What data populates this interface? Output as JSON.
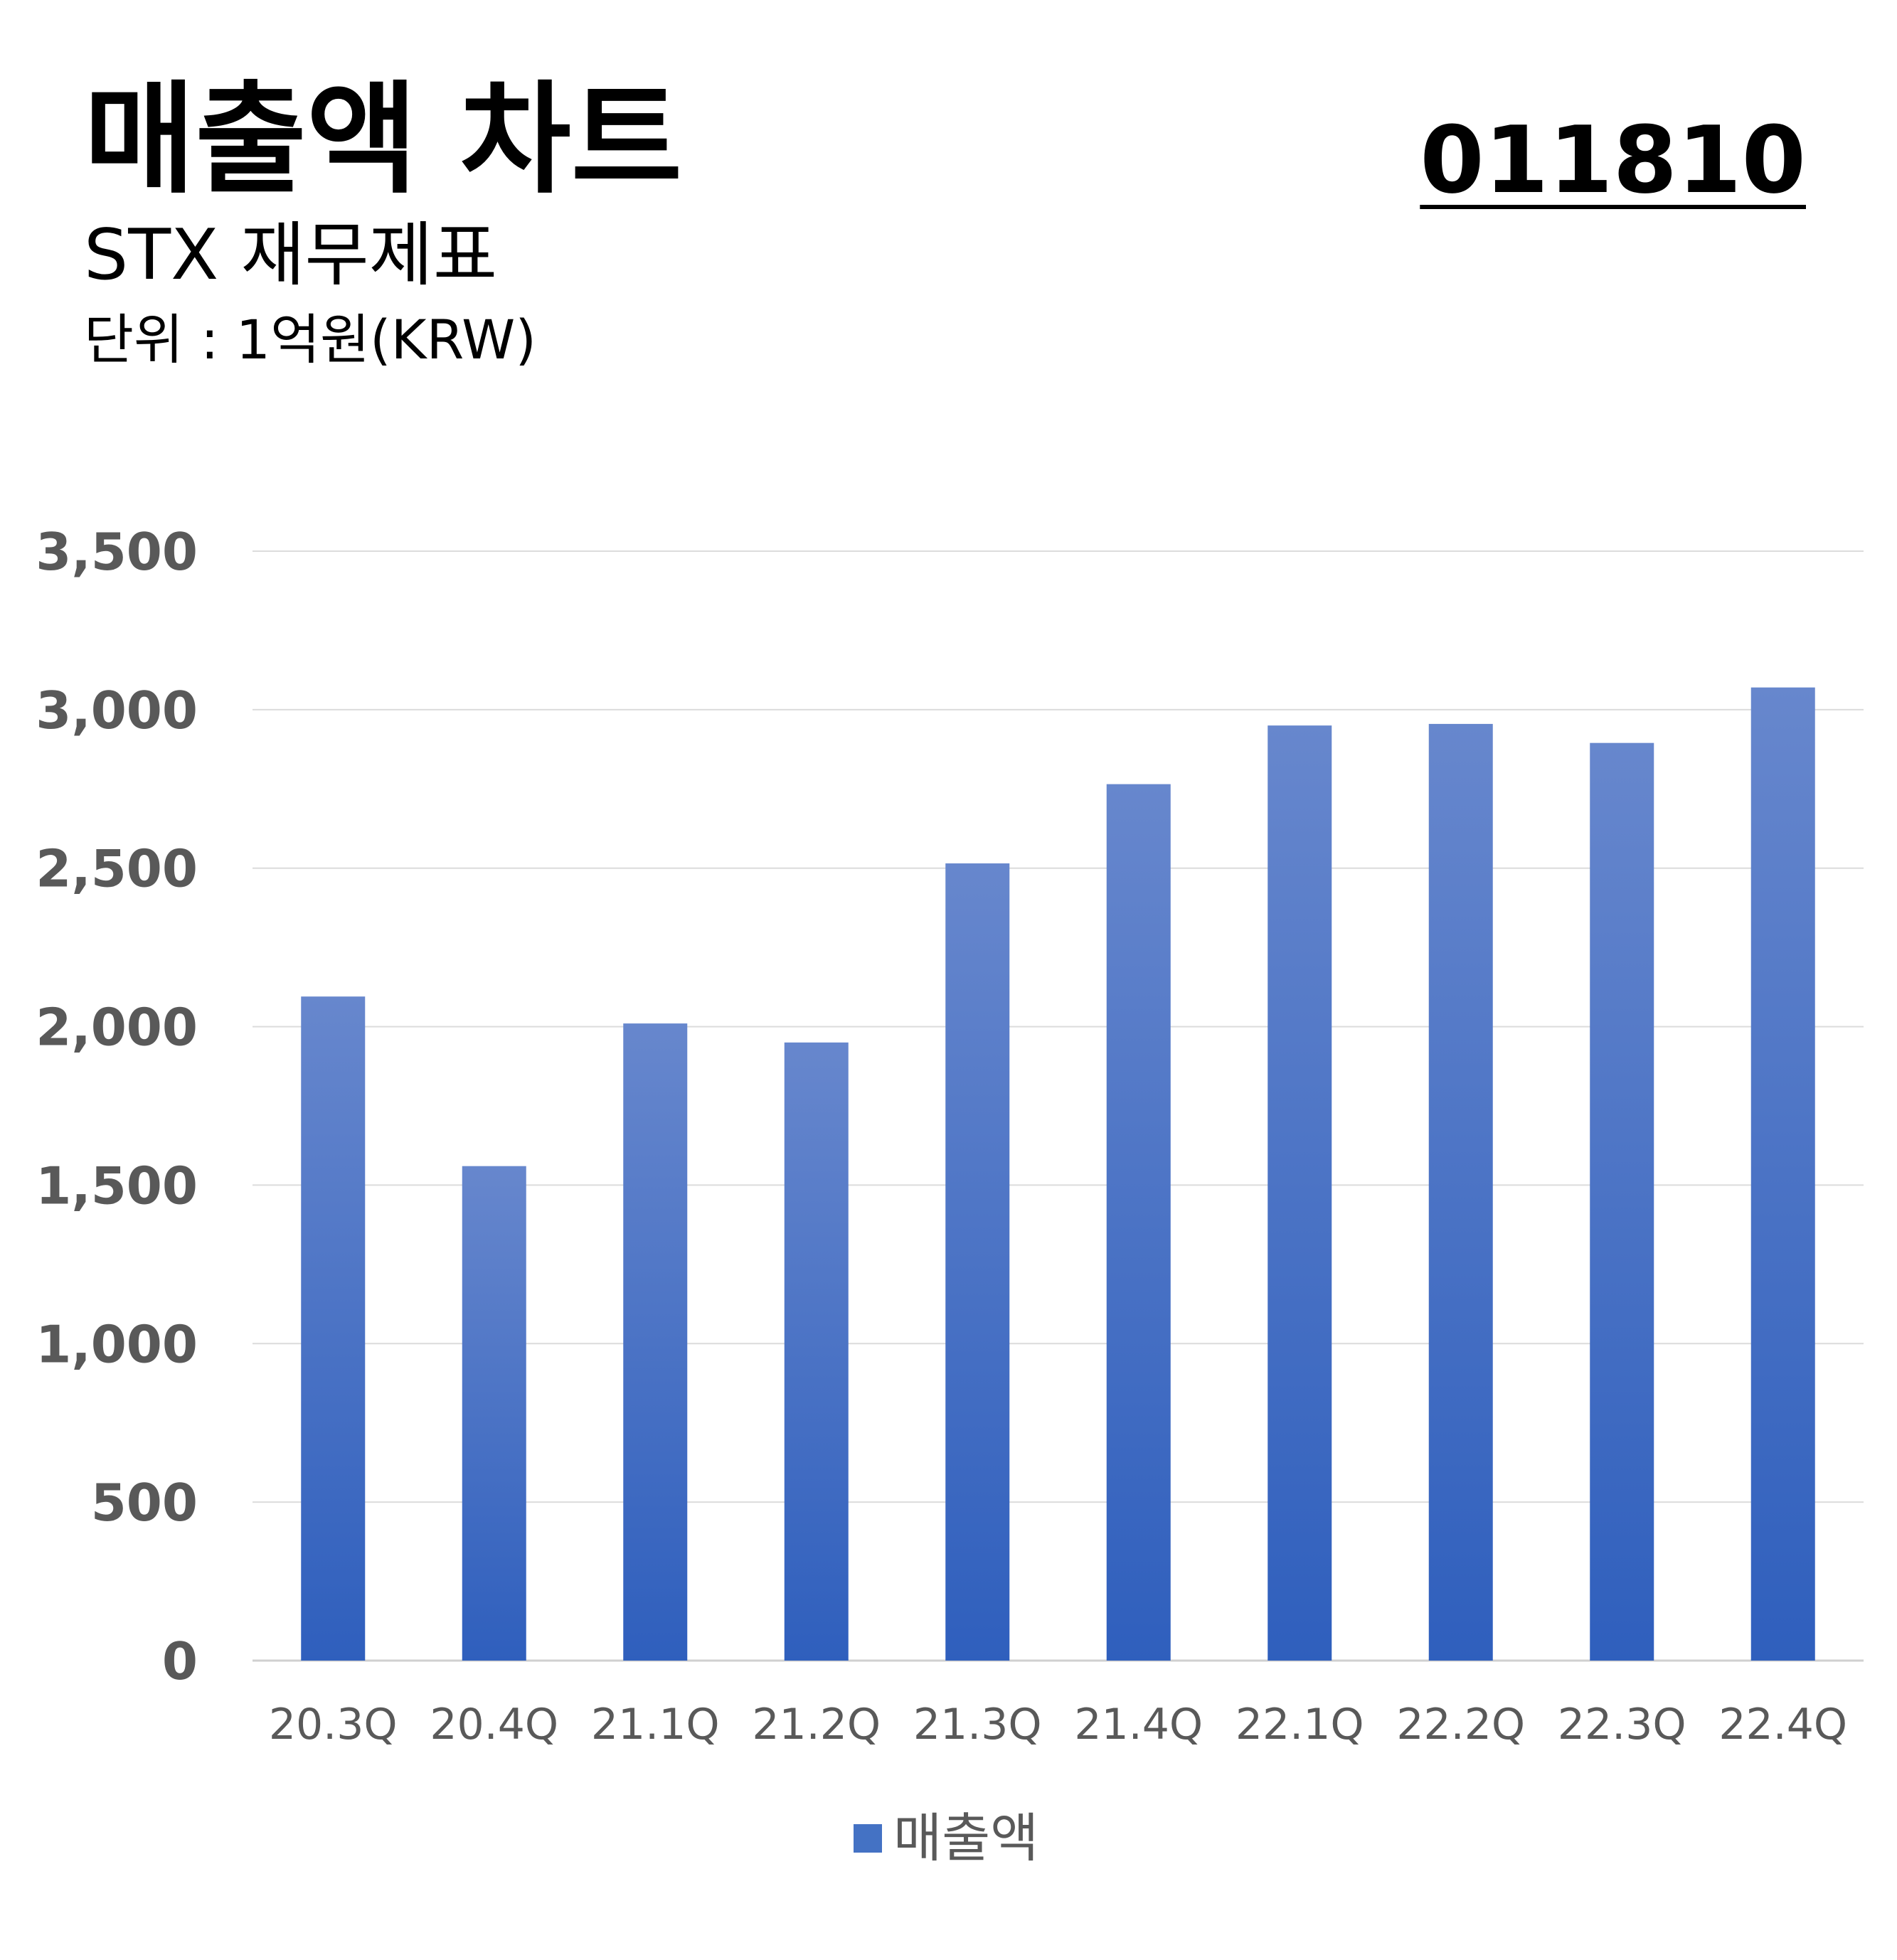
{
  "header": {
    "title": "매출액 차트",
    "subtitle": "STX 재무제표",
    "unit": "단위 : 1억원(KRW)",
    "code": "011810"
  },
  "chart_data": {
    "type": "bar",
    "categories": [
      "20.3Q",
      "20.4Q",
      "21.1Q",
      "21.2Q",
      "21.3Q",
      "21.4Q",
      "22.1Q",
      "22.2Q",
      "22.3Q",
      "22.4Q"
    ],
    "series": [
      {
        "name": "매출액",
        "values": [
          2095,
          1560,
          2010,
          1950,
          2515,
          2765,
          2950,
          2955,
          2895,
          3070
        ]
      }
    ],
    "ylim": [
      0,
      3500
    ],
    "yticks": [
      "0",
      "500",
      "1,000",
      "1,500",
      "2,000",
      "2,500",
      "3,000",
      "3,500"
    ],
    "grid": true,
    "legend_position": "bottom",
    "bar_color_top": "#6787cd",
    "bar_color_bottom": "#2f5fbd"
  },
  "legend": {
    "label": "매출액"
  }
}
